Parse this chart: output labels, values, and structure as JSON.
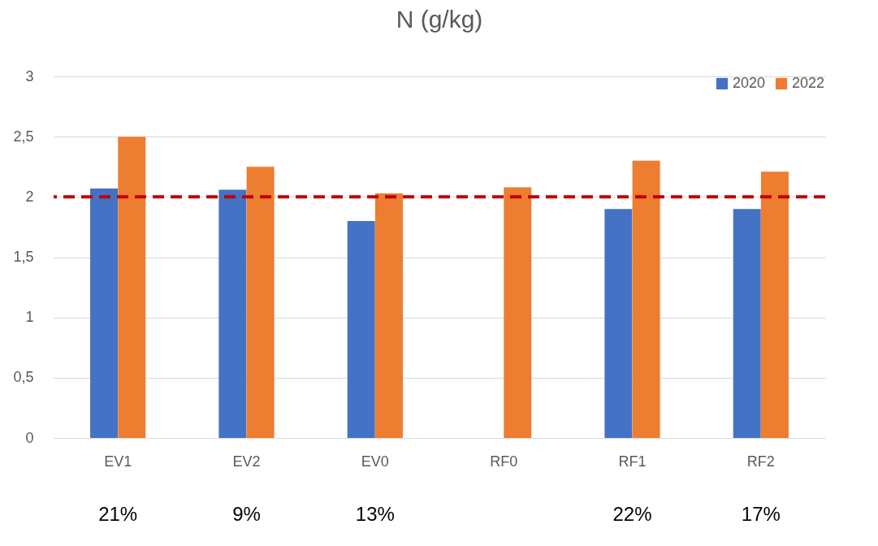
{
  "chart_data": {
    "type": "bar",
    "title": "N (g/kg)",
    "categories": [
      "EV1",
      "EV2",
      "EV0",
      "RF0",
      "RF1",
      "RF2"
    ],
    "series": [
      {
        "name": "2020",
        "color": "#4472c4",
        "values": [
          2.07,
          2.06,
          1.8,
          null,
          1.9,
          1.9
        ]
      },
      {
        "name": "2022",
        "color": "#ed7d31",
        "values": [
          2.5,
          2.25,
          2.03,
          2.08,
          2.3,
          2.21
        ]
      }
    ],
    "ylim": [
      0,
      3
    ],
    "yticks": [
      0,
      {
        "value": 0.5,
        "label": "0,5"
      },
      1,
      {
        "value": 1.5,
        "label": "1,5"
      },
      2,
      {
        "value": 2.5,
        "label": "2,5"
      },
      3
    ],
    "grid": "y",
    "legend": "top right",
    "ref_lines": [
      {
        "axis": "y",
        "value": 2,
        "color": "#c00000",
        "line_style": "dashed"
      }
    ],
    "annotations": [
      "21%",
      "9%",
      "13%",
      "22%",
      "17%"
    ]
  }
}
